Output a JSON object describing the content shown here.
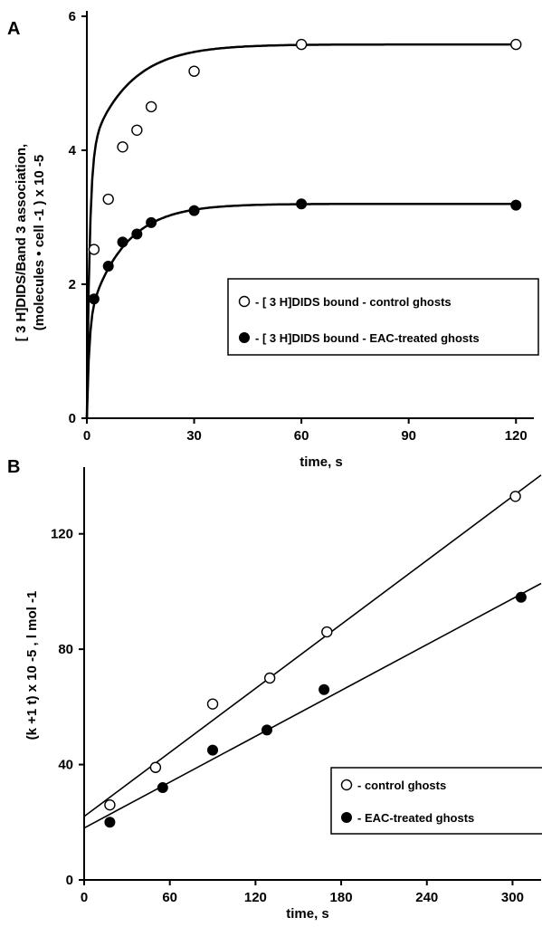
{
  "chart_data": [
    {
      "panel": "A",
      "type": "line",
      "xlabel": "time, s",
      "ylabel_line1": "[ 3 H]DIDS/Band 3 association,",
      "ylabel_line2": "(molecules • cell -1 ) x 10 -5",
      "xlim": [
        0,
        125
      ],
      "ylim": [
        0,
        6
      ],
      "xticks": [
        "0",
        "30",
        "60",
        "90",
        "120"
      ],
      "yticks": [
        "0",
        "2",
        "4",
        "6"
      ],
      "legend_position": "center-right",
      "grid": false,
      "series": [
        {
          "name": "- [ 3 H]DIDS bound - control ghosts",
          "marker": "open-circle",
          "x": [
            0,
            2,
            6,
            10,
            14,
            18,
            30,
            60,
            120
          ],
          "y": [
            0,
            2.52,
            3.27,
            4.05,
            4.3,
            4.65,
            5.18,
            5.58,
            5.58
          ]
        },
        {
          "name": "- [ 3 H]DIDS bound - EAC-treated ghosts",
          "marker": "filled-circle",
          "x": [
            0,
            2,
            6,
            10,
            14,
            18,
            30,
            60,
            120
          ],
          "y": [
            0,
            1.78,
            2.27,
            2.63,
            2.75,
            2.92,
            3.1,
            3.2,
            3.18
          ]
        }
      ],
      "curve_fit": [
        {
          "ymax": 5.58,
          "k": 0.09,
          "b": 1.3,
          "a": 0.7
        },
        {
          "ymax": 3.2,
          "k": 0.1,
          "b": 1.55,
          "a": 0.45
        }
      ]
    },
    {
      "panel": "B",
      "type": "scatter",
      "xlabel": "time, s",
      "ylabel": "(k +1 t) x 10 -5 , l mol -1",
      "xlim": [
        0,
        320
      ],
      "ylim": [
        0,
        140
      ],
      "xticks": [
        "0",
        "60",
        "120",
        "180",
        "240",
        "300"
      ],
      "yticks": [
        "0",
        "40",
        "80",
        "120"
      ],
      "legend_position": "lower-right",
      "grid": false,
      "series": [
        {
          "name": "- control ghosts",
          "marker": "open-circle",
          "x": [
            18,
            50,
            90,
            130,
            170,
            302
          ],
          "y": [
            26,
            39,
            61,
            70,
            86,
            133
          ],
          "fit": {
            "intercept": 22,
            "slope": 0.37
          }
        },
        {
          "name": "- EAC-treated ghosts",
          "marker": "filled-circle",
          "x": [
            18,
            55,
            90,
            128,
            168,
            306
          ],
          "y": [
            20,
            32,
            45,
            52,
            66,
            98
          ],
          "fit": {
            "intercept": 18,
            "slope": 0.265
          }
        }
      ]
    }
  ]
}
